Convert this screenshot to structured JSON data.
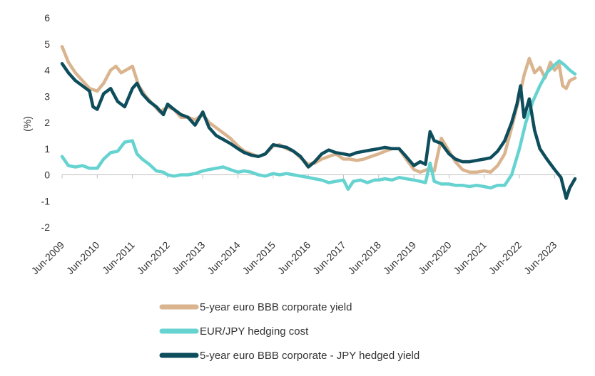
{
  "chart_data": {
    "type": "line",
    "ylabel": "(%)",
    "ylim": [
      -2,
      6
    ],
    "yticks": [
      "6",
      "5",
      "4",
      "3",
      "2",
      "1",
      "0",
      "-1",
      "-2"
    ],
    "xticks": [
      "Jun-2009",
      "Jun-2010",
      "Jun-2011",
      "Jun-2012",
      "Jun-2013",
      "Jun-2014",
      "Jun-2015",
      "Jun-2016",
      "Jun-2017",
      "Jun-2018",
      "Jun-2019",
      "Jun-2020",
      "Jun-2021",
      "Jun-2022",
      "Jun-2023"
    ],
    "x_start": 2009.42,
    "x_end": 2024.0,
    "grid": false,
    "legend_position": "bottom",
    "series": [
      {
        "name": "5-year euro BBB corporate yield",
        "color": "#d9b48f",
        "points": [
          [
            2009.42,
            4.9
          ],
          [
            2009.6,
            4.3
          ],
          [
            2009.8,
            3.9
          ],
          [
            2010.0,
            3.6
          ],
          [
            2010.2,
            3.3
          ],
          [
            2010.42,
            3.2
          ],
          [
            2010.6,
            3.5
          ],
          [
            2010.8,
            4.0
          ],
          [
            2010.95,
            4.15
          ],
          [
            2011.1,
            3.9
          ],
          [
            2011.3,
            4.05
          ],
          [
            2011.42,
            4.15
          ],
          [
            2011.6,
            3.4
          ],
          [
            2011.8,
            3.0
          ],
          [
            2012.0,
            2.7
          ],
          [
            2012.2,
            2.4
          ],
          [
            2012.42,
            2.6
          ],
          [
            2012.6,
            2.5
          ],
          [
            2012.8,
            2.2
          ],
          [
            2013.0,
            2.2
          ],
          [
            2013.2,
            2.1
          ],
          [
            2013.42,
            2.3
          ],
          [
            2013.6,
            2.0
          ],
          [
            2013.8,
            1.8
          ],
          [
            2014.0,
            1.6
          ],
          [
            2014.2,
            1.4
          ],
          [
            2014.42,
            1.1
          ],
          [
            2014.6,
            0.9
          ],
          [
            2014.8,
            0.8
          ],
          [
            2015.0,
            0.7
          ],
          [
            2015.2,
            0.8
          ],
          [
            2015.42,
            1.1
          ],
          [
            2015.6,
            1.15
          ],
          [
            2015.8,
            1.0
          ],
          [
            2016.0,
            0.9
          ],
          [
            2016.2,
            0.65
          ],
          [
            2016.42,
            0.4
          ],
          [
            2016.6,
            0.45
          ],
          [
            2016.8,
            0.6
          ],
          [
            2017.0,
            0.7
          ],
          [
            2017.2,
            0.8
          ],
          [
            2017.42,
            0.6
          ],
          [
            2017.6,
            0.6
          ],
          [
            2017.8,
            0.55
          ],
          [
            2018.0,
            0.6
          ],
          [
            2018.2,
            0.7
          ],
          [
            2018.42,
            0.8
          ],
          [
            2018.6,
            0.9
          ],
          [
            2018.8,
            1.0
          ],
          [
            2019.0,
            1.0
          ],
          [
            2019.2,
            0.6
          ],
          [
            2019.42,
            0.2
          ],
          [
            2019.6,
            0.1
          ],
          [
            2019.8,
            0.2
          ],
          [
            2020.0,
            0.15
          ],
          [
            2020.2,
            1.4
          ],
          [
            2020.42,
            0.9
          ],
          [
            2020.6,
            0.5
          ],
          [
            2020.8,
            0.2
          ],
          [
            2021.0,
            0.1
          ],
          [
            2021.2,
            0.1
          ],
          [
            2021.42,
            0.15
          ],
          [
            2021.6,
            0.1
          ],
          [
            2021.8,
            0.35
          ],
          [
            2022.0,
            0.8
          ],
          [
            2022.2,
            1.8
          ],
          [
            2022.42,
            3.0
          ],
          [
            2022.55,
            3.8
          ],
          [
            2022.7,
            4.45
          ],
          [
            2022.85,
            3.9
          ],
          [
            2023.0,
            4.1
          ],
          [
            2023.15,
            3.7
          ],
          [
            2023.3,
            4.3
          ],
          [
            2023.42,
            4.0
          ],
          [
            2023.55,
            4.2
          ],
          [
            2023.65,
            3.4
          ],
          [
            2023.75,
            3.3
          ],
          [
            2023.85,
            3.6
          ],
          [
            2024.0,
            3.7
          ]
        ]
      },
      {
        "name": "EUR/JPY hedging cost",
        "color": "#66d3d1",
        "points": [
          [
            2009.42,
            0.7
          ],
          [
            2009.6,
            0.35
          ],
          [
            2009.8,
            0.3
          ],
          [
            2010.0,
            0.35
          ],
          [
            2010.2,
            0.25
          ],
          [
            2010.42,
            0.25
          ],
          [
            2010.6,
            0.6
          ],
          [
            2010.8,
            0.85
          ],
          [
            2011.0,
            0.9
          ],
          [
            2011.2,
            1.25
          ],
          [
            2011.42,
            1.3
          ],
          [
            2011.55,
            0.8
          ],
          [
            2011.7,
            0.6
          ],
          [
            2011.9,
            0.4
          ],
          [
            2012.1,
            0.15
          ],
          [
            2012.3,
            0.1
          ],
          [
            2012.42,
            0.0
          ],
          [
            2012.6,
            -0.05
          ],
          [
            2012.8,
            0.0
          ],
          [
            2013.0,
            0.0
          ],
          [
            2013.2,
            0.05
          ],
          [
            2013.42,
            0.15
          ],
          [
            2013.6,
            0.2
          ],
          [
            2013.8,
            0.25
          ],
          [
            2014.0,
            0.3
          ],
          [
            2014.2,
            0.2
          ],
          [
            2014.42,
            0.1
          ],
          [
            2014.6,
            0.15
          ],
          [
            2014.8,
            0.1
          ],
          [
            2015.0,
            0.0
          ],
          [
            2015.2,
            -0.05
          ],
          [
            2015.42,
            0.05
          ],
          [
            2015.6,
            0.0
          ],
          [
            2015.8,
            0.05
          ],
          [
            2016.0,
            0.0
          ],
          [
            2016.2,
            -0.05
          ],
          [
            2016.42,
            -0.1
          ],
          [
            2016.6,
            -0.15
          ],
          [
            2016.8,
            -0.2
          ],
          [
            2017.0,
            -0.3
          ],
          [
            2017.2,
            -0.25
          ],
          [
            2017.42,
            -0.2
          ],
          [
            2017.55,
            -0.55
          ],
          [
            2017.7,
            -0.25
          ],
          [
            2017.9,
            -0.2
          ],
          [
            2018.1,
            -0.3
          ],
          [
            2018.3,
            -0.2
          ],
          [
            2018.42,
            -0.2
          ],
          [
            2018.6,
            -0.15
          ],
          [
            2018.8,
            -0.2
          ],
          [
            2019.0,
            -0.1
          ],
          [
            2019.2,
            -0.15
          ],
          [
            2019.42,
            -0.2
          ],
          [
            2019.6,
            -0.25
          ],
          [
            2019.75,
            -0.3
          ],
          [
            2019.88,
            0.45
          ],
          [
            2020.0,
            -0.25
          ],
          [
            2020.2,
            -0.35
          ],
          [
            2020.42,
            -0.35
          ],
          [
            2020.6,
            -0.4
          ],
          [
            2020.8,
            -0.4
          ],
          [
            2021.0,
            -0.45
          ],
          [
            2021.2,
            -0.4
          ],
          [
            2021.42,
            -0.45
          ],
          [
            2021.6,
            -0.5
          ],
          [
            2021.8,
            -0.4
          ],
          [
            2022.0,
            -0.4
          ],
          [
            2022.2,
            0.0
          ],
          [
            2022.42,
            1.0
          ],
          [
            2022.6,
            2.0
          ],
          [
            2022.8,
            2.8
          ],
          [
            2023.0,
            3.4
          ],
          [
            2023.2,
            3.9
          ],
          [
            2023.42,
            4.2
          ],
          [
            2023.55,
            4.35
          ],
          [
            2023.7,
            4.2
          ],
          [
            2023.85,
            4.0
          ],
          [
            2024.0,
            3.85
          ]
        ]
      },
      {
        "name": "5-year euro BBB corporate - JPY hedged yield",
        "color": "#0e4d5c",
        "points": [
          [
            2009.42,
            4.25
          ],
          [
            2009.6,
            3.9
          ],
          [
            2009.8,
            3.6
          ],
          [
            2010.0,
            3.4
          ],
          [
            2010.2,
            3.2
          ],
          [
            2010.3,
            2.6
          ],
          [
            2010.42,
            2.5
          ],
          [
            2010.6,
            3.1
          ],
          [
            2010.8,
            3.3
          ],
          [
            2011.0,
            2.8
          ],
          [
            2011.2,
            2.6
          ],
          [
            2011.42,
            3.3
          ],
          [
            2011.55,
            3.5
          ],
          [
            2011.7,
            3.1
          ],
          [
            2011.9,
            2.8
          ],
          [
            2012.1,
            2.6
          ],
          [
            2012.3,
            2.3
          ],
          [
            2012.42,
            2.7
          ],
          [
            2012.6,
            2.5
          ],
          [
            2012.8,
            2.3
          ],
          [
            2013.0,
            2.2
          ],
          [
            2013.2,
            1.9
          ],
          [
            2013.42,
            2.4
          ],
          [
            2013.6,
            1.8
          ],
          [
            2013.8,
            1.5
          ],
          [
            2014.0,
            1.35
          ],
          [
            2014.2,
            1.2
          ],
          [
            2014.42,
            1.0
          ],
          [
            2014.6,
            0.85
          ],
          [
            2014.8,
            0.75
          ],
          [
            2015.0,
            0.7
          ],
          [
            2015.2,
            0.8
          ],
          [
            2015.42,
            1.15
          ],
          [
            2015.6,
            1.1
          ],
          [
            2015.8,
            1.05
          ],
          [
            2016.0,
            0.9
          ],
          [
            2016.2,
            0.7
          ],
          [
            2016.42,
            0.3
          ],
          [
            2016.6,
            0.5
          ],
          [
            2016.8,
            0.8
          ],
          [
            2017.0,
            0.95
          ],
          [
            2017.2,
            0.85
          ],
          [
            2017.42,
            0.8
          ],
          [
            2017.6,
            0.75
          ],
          [
            2017.8,
            0.85
          ],
          [
            2018.0,
            0.9
          ],
          [
            2018.2,
            0.95
          ],
          [
            2018.42,
            1.0
          ],
          [
            2018.6,
            1.05
          ],
          [
            2018.8,
            1.0
          ],
          [
            2019.0,
            1.0
          ],
          [
            2019.2,
            0.7
          ],
          [
            2019.42,
            0.35
          ],
          [
            2019.6,
            0.5
          ],
          [
            2019.75,
            0.4
          ],
          [
            2019.88,
            1.65
          ],
          [
            2020.0,
            1.3
          ],
          [
            2020.2,
            1.2
          ],
          [
            2020.42,
            0.8
          ],
          [
            2020.6,
            0.6
          ],
          [
            2020.8,
            0.5
          ],
          [
            2021.0,
            0.5
          ],
          [
            2021.2,
            0.55
          ],
          [
            2021.42,
            0.6
          ],
          [
            2021.6,
            0.65
          ],
          [
            2021.8,
            0.9
          ],
          [
            2022.0,
            1.3
          ],
          [
            2022.2,
            2.0
          ],
          [
            2022.35,
            2.7
          ],
          [
            2022.45,
            3.4
          ],
          [
            2022.55,
            2.2
          ],
          [
            2022.7,
            2.9
          ],
          [
            2022.85,
            1.7
          ],
          [
            2023.0,
            1.0
          ],
          [
            2023.2,
            0.6
          ],
          [
            2023.42,
            0.2
          ],
          [
            2023.6,
            -0.1
          ],
          [
            2023.75,
            -0.9
          ],
          [
            2023.85,
            -0.5
          ],
          [
            2024.0,
            -0.15
          ]
        ]
      }
    ]
  }
}
